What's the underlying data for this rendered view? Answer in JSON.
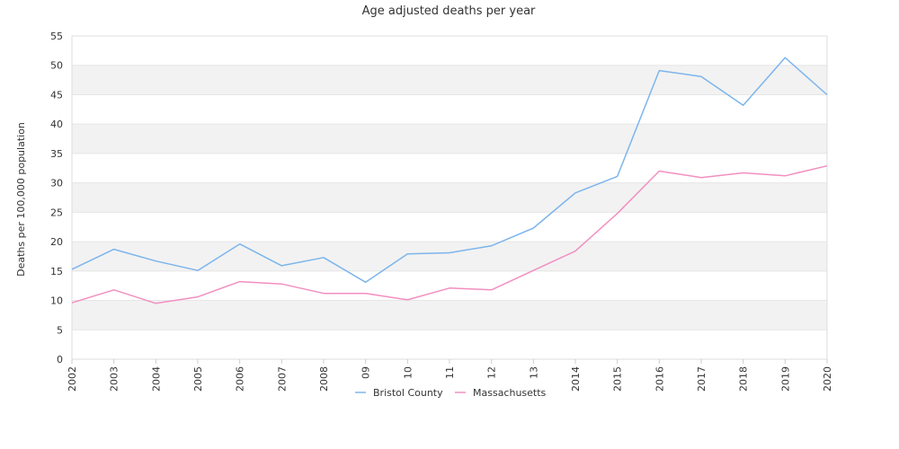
{
  "chart_data": {
    "type": "line",
    "title": "Age adjusted deaths per year",
    "xlabel": "",
    "ylabel": "Deaths per 100,000 population",
    "categories": [
      "2002",
      "2003",
      "2004",
      "2005",
      "2006",
      "2007",
      "2008",
      "09",
      "10",
      "11",
      "12",
      "13",
      "2014",
      "2015",
      "2016",
      "2017",
      "2018",
      "2019",
      "2020"
    ],
    "ylim": [
      0,
      55
    ],
    "yticks": [
      0,
      5,
      10,
      15,
      20,
      25,
      30,
      35,
      40,
      45,
      50,
      55
    ],
    "grid": "horizontal bands",
    "legend_position": "bottom",
    "series": [
      {
        "name": "Bristol County",
        "color": "#7cb5ec",
        "values": [
          15.3,
          18.7,
          16.7,
          15.1,
          19.6,
          15.9,
          17.3,
          13.1,
          17.9,
          18.1,
          19.3,
          22.3,
          28.3,
          31.1,
          49.1,
          48.1,
          43.2,
          51.3,
          45.0
        ]
      },
      {
        "name": "Massachusetts",
        "color": "#f28fc0",
        "values": [
          9.6,
          11.8,
          9.5,
          10.6,
          13.2,
          12.8,
          11.2,
          11.2,
          10.1,
          12.1,
          11.8,
          15.1,
          18.4,
          24.8,
          32.0,
          30.9,
          31.7,
          31.2,
          32.9
        ]
      }
    ],
    "band_color": "#f2f2f2",
    "grid_color": "#e6e6e6"
  }
}
